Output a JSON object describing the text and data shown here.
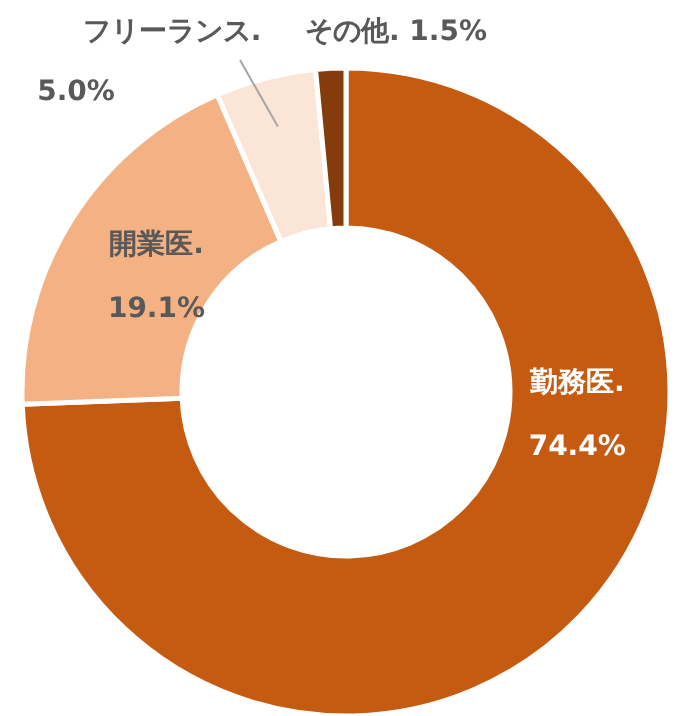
{
  "chart_data": {
    "type": "donut",
    "categories": [
      "勤務医.",
      "開業医.",
      "フリーランス.",
      "その他."
    ],
    "values": [
      74.4,
      19.1,
      5.0,
      1.5
    ],
    "colors": [
      "#c55a11",
      "#f4b183",
      "#fbe5d6",
      "#843c0c"
    ],
    "value_labels": [
      "74.4%",
      "19.1%",
      "5.0%",
      "1.5%"
    ]
  }
}
